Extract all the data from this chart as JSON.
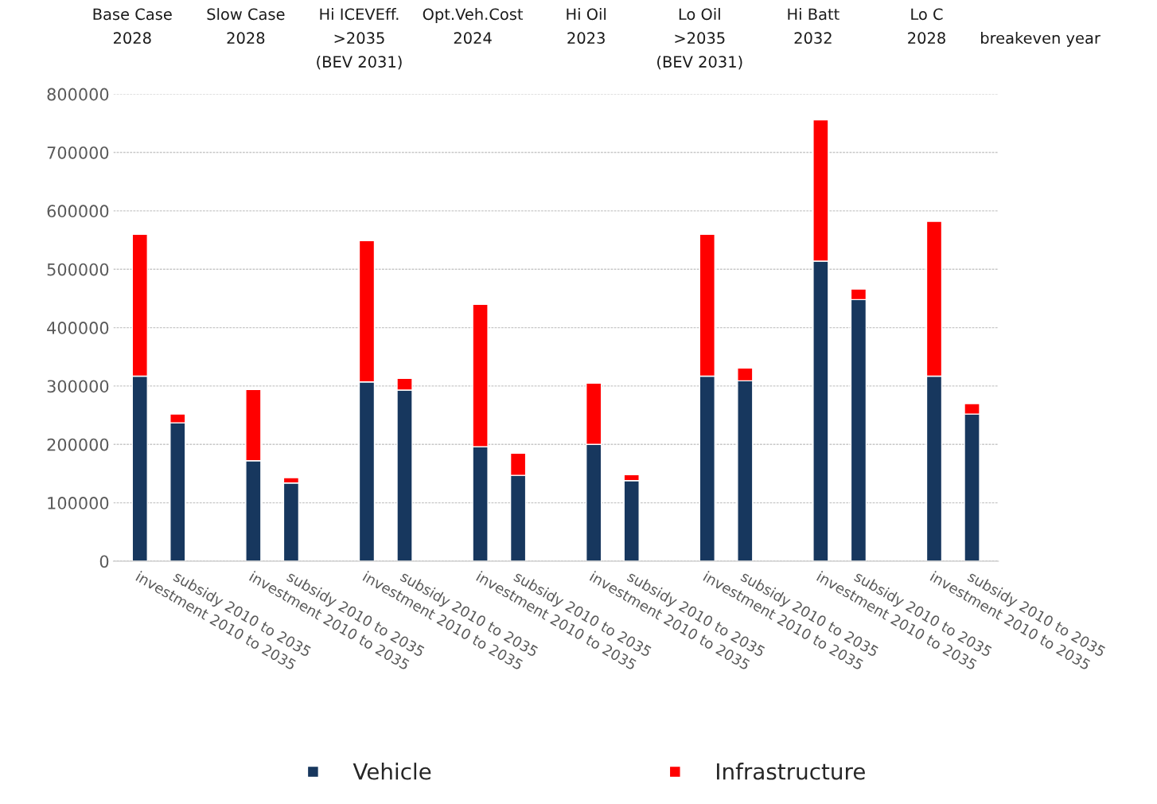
{
  "chart_data": {
    "type": "bar",
    "stacked": true,
    "categories": [
      "investment 2010 to 2035",
      "subsidy 2010 to 2035",
      null,
      "investment 2010 to 2035",
      "subsidy 2010 to 2035",
      null,
      "investment 2010 to 2035",
      "subsidy 2010 to 2035",
      null,
      "investment 2010 to 2035",
      "subsidy 2010 to 2035",
      null,
      "investment 2010 to 2035",
      "subsidy 2010 to 2035",
      null,
      "investment 2010 to 2035",
      "subsidy 2010 to 2035",
      null,
      "investment 2010 to 2035",
      "subsidy 2010 to 2035",
      null,
      "investment 2010 to 2035",
      "subsidy 2010 to 2035"
    ],
    "series": [
      {
        "name": "Vehicle",
        "color": "#17375e",
        "values": [
          317000,
          237000,
          null,
          172000,
          134000,
          null,
          307000,
          293000,
          null,
          196000,
          147000,
          null,
          200000,
          138000,
          null,
          317000,
          309000,
          null,
          514000,
          448000,
          null,
          317000,
          252000
        ]
      },
      {
        "name": "Infrastructure",
        "color": "#ff0000",
        "values": [
          243000,
          15000,
          null,
          122000,
          9000,
          null,
          242000,
          20000,
          null,
          244000,
          38000,
          null,
          105000,
          10000,
          null,
          243000,
          22000,
          null,
          242000,
          18000,
          null,
          265000,
          18000
        ]
      }
    ],
    "ylim": [
      0,
      800000
    ],
    "yticks": [
      0,
      100000,
      200000,
      300000,
      400000,
      500000,
      600000,
      700000,
      800000
    ],
    "grid": "y",
    "legend": "bottom",
    "annotations": [
      "Base Case\n2028",
      "Slow Case\n2028",
      "Hi ICEVEff.\n>2035\n(BEV 2031)",
      "Opt.Veh.Cost\n2024",
      "Hi Oil\n2023",
      "Lo Oil\n>2035\n(BEV 2031)",
      "Hi Batt\n2032",
      "Lo C\n2028",
      "\nbreakeven year"
    ]
  }
}
